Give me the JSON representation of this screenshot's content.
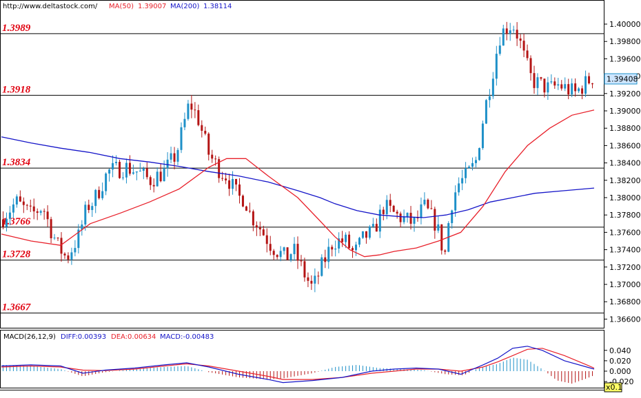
{
  "header": {
    "source": "http://www.deltastock.com/",
    "ma50_label": "MA(50)",
    "ma50_value": "1.39007",
    "ma200_label": "MA(200)",
    "ma200_value": "1.38114"
  },
  "price_axis": {
    "ticks": [
      "1.40000",
      "1.39800",
      "1.39600",
      "1.39400",
      "1.39200",
      "1.39000",
      "1.38800",
      "1.38600",
      "1.38400",
      "1.38200",
      "1.38000",
      "1.37800",
      "1.37600",
      "1.37400",
      "1.37200",
      "1.37000",
      "1.36800",
      "1.36600"
    ],
    "current_price": "1.39408",
    "current_value": 1.39408
  },
  "levels": [
    {
      "label": "1.3989",
      "value": 1.3989
    },
    {
      "label": "1.3918",
      "value": 1.3918
    },
    {
      "label": "1.3834",
      "value": 1.3834
    },
    {
      "label": "1.3766",
      "value": 1.3766
    },
    {
      "label": "1.3728",
      "value": 1.3728
    },
    {
      "label": "1.3667",
      "value": 1.3667
    }
  ],
  "macd": {
    "title": "MACD(26,12,9)",
    "diff_label": "DIFF:0.00393",
    "dea_label": "DEA:0.00634",
    "macd_label": "MACD:-0.00483",
    "ticks": [
      "0.040",
      "0.020",
      "0.000",
      "-0.020"
    ],
    "scale_badge": "x0.1"
  },
  "colors": {
    "up": "#1e90c8",
    "down": "#b41414",
    "ma50": "#e8202a",
    "ma200": "#1414c8",
    "diff": "#1414c8",
    "dea": "#e8202a",
    "level_text": "#e0000f",
    "price_tag": "#cde6ff"
  },
  "chart_data": {
    "type": "candlestick",
    "bars": 173,
    "ylim": [
      1.3655,
      1.4012
    ],
    "close_path": [
      [
        0,
        1.3775
      ],
      [
        10,
        1.3795
      ],
      [
        20,
        1.378
      ],
      [
        28,
        1.379
      ],
      [
        33,
        1.3765
      ],
      [
        38,
        1.3745
      ],
      [
        44,
        1.373
      ],
      [
        52,
        1.3755
      ],
      [
        58,
        1.379
      ],
      [
        62,
        1.3795
      ],
      [
        72,
        1.383
      ],
      [
        84,
        1.3835
      ],
      [
        92,
        1.383
      ],
      [
        100,
        1.382
      ],
      [
        110,
        1.383
      ],
      [
        118,
        1.385
      ],
      [
        127,
        1.391
      ],
      [
        133,
        1.389
      ],
      [
        140,
        1.385
      ],
      [
        148,
        1.383
      ],
      [
        152,
        1.3825
      ],
      [
        160,
        1.38
      ],
      [
        164,
        1.38
      ],
      [
        168,
        1.378
      ],
      [
        172,
        1.3772
      ],
      [
        182,
        1.3745
      ],
      [
        192,
        1.373
      ],
      [
        197,
        1.374
      ],
      [
        205,
        1.371
      ],
      [
        210,
        1.3695
      ],
      [
        216,
        1.372
      ],
      [
        224,
        1.375
      ],
      [
        232,
        1.375
      ],
      [
        238,
        1.3735
      ],
      [
        245,
        1.3755
      ],
      [
        251,
        1.376
      ],
      [
        258,
        1.379
      ],
      [
        266,
        1.378
      ],
      [
        272,
        1.3775
      ],
      [
        279,
        1.377
      ],
      [
        285,
        1.379
      ],
      [
        293,
        1.377
      ],
      [
        296,
        1.3755
      ],
      [
        299,
        1.373
      ],
      [
        303,
        1.379
      ],
      [
        308,
        1.3815
      ],
      [
        314,
        1.3825
      ],
      [
        320,
        1.384
      ],
      [
        326,
        1.39
      ],
      [
        331,
        1.394
      ],
      [
        336,
        1.3985
      ],
      [
        340,
        1.3995
      ],
      [
        345,
        1.4
      ],
      [
        349,
        1.3985
      ],
      [
        353,
        1.396
      ],
      [
        358,
        1.3935
      ],
      [
        364,
        1.393
      ],
      [
        370,
        1.3925
      ],
      [
        376,
        1.393
      ],
      [
        382,
        1.3925
      ],
      [
        387,
        1.392
      ],
      [
        393,
        1.393
      ],
      [
        400,
        1.394
      ]
    ],
    "ma50": [
      [
        0,
        1.3758
      ],
      [
        20,
        1.375
      ],
      [
        40,
        1.3745
      ],
      [
        60,
        1.377
      ],
      [
        80,
        1.3782
      ],
      [
        100,
        1.3795
      ],
      [
        120,
        1.381
      ],
      [
        140,
        1.3835
      ],
      [
        152,
        1.3845
      ],
      [
        165,
        1.3845
      ],
      [
        180,
        1.3825
      ],
      [
        200,
        1.38
      ],
      [
        214,
        1.3775
      ],
      [
        225,
        1.3755
      ],
      [
        235,
        1.374
      ],
      [
        245,
        1.3732
      ],
      [
        255,
        1.3734
      ],
      [
        265,
        1.3738
      ],
      [
        280,
        1.3742
      ],
      [
        295,
        1.375
      ],
      [
        310,
        1.376
      ],
      [
        325,
        1.379
      ],
      [
        340,
        1.383
      ],
      [
        355,
        1.386
      ],
      [
        370,
        1.388
      ],
      [
        385,
        1.3895
      ],
      [
        400,
        1.3901
      ]
    ],
    "ma200": [
      [
        0,
        1.387
      ],
      [
        20,
        1.3863
      ],
      [
        40,
        1.3857
      ],
      [
        60,
        1.3852
      ],
      [
        80,
        1.3845
      ],
      [
        100,
        1.3841
      ],
      [
        120,
        1.3836
      ],
      [
        140,
        1.383
      ],
      [
        160,
        1.3825
      ],
      [
        180,
        1.3818
      ],
      [
        200,
        1.3808
      ],
      [
        215,
        1.38
      ],
      [
        225,
        1.3793
      ],
      [
        240,
        1.3785
      ],
      [
        255,
        1.378
      ],
      [
        270,
        1.3778
      ],
      [
        285,
        1.3777
      ],
      [
        300,
        1.378
      ],
      [
        315,
        1.3786
      ],
      [
        330,
        1.3795
      ],
      [
        345,
        1.38
      ],
      [
        360,
        1.3805
      ],
      [
        380,
        1.3808
      ],
      [
        400,
        1.3811
      ]
    ],
    "macd_diff": [
      [
        0,
        0.01
      ],
      [
        20,
        0.012
      ],
      [
        40,
        0.01
      ],
      [
        55,
        -0.004
      ],
      [
        70,
        0.002
      ],
      [
        90,
        0.006
      ],
      [
        110,
        0.012
      ],
      [
        125,
        0.016
      ],
      [
        140,
        0.008
      ],
      [
        160,
        -0.006
      ],
      [
        180,
        -0.016
      ],
      [
        190,
        -0.022
      ],
      [
        210,
        -0.018
      ],
      [
        230,
        -0.012
      ],
      [
        250,
        0.0
      ],
      [
        265,
        0.004
      ],
      [
        280,
        0.006
      ],
      [
        295,
        0.004
      ],
      [
        310,
        -0.006
      ],
      [
        325,
        0.012
      ],
      [
        335,
        0.025
      ],
      [
        345,
        0.044
      ],
      [
        355,
        0.048
      ],
      [
        365,
        0.04
      ],
      [
        380,
        0.02
      ],
      [
        395,
        0.008
      ],
      [
        400,
        0.004
      ]
    ],
    "macd_dea": [
      [
        0,
        0.008
      ],
      [
        20,
        0.01
      ],
      [
        40,
        0.008
      ],
      [
        55,
        0.002
      ],
      [
        70,
        0.001
      ],
      [
        90,
        0.004
      ],
      [
        110,
        0.01
      ],
      [
        125,
        0.014
      ],
      [
        140,
        0.01
      ],
      [
        160,
        0.0
      ],
      [
        180,
        -0.01
      ],
      [
        190,
        -0.016
      ],
      [
        210,
        -0.016
      ],
      [
        230,
        -0.012
      ],
      [
        250,
        -0.004
      ],
      [
        265,
        0.0
      ],
      [
        280,
        0.004
      ],
      [
        295,
        0.004
      ],
      [
        310,
        0.0
      ],
      [
        325,
        0.008
      ],
      [
        335,
        0.018
      ],
      [
        345,
        0.03
      ],
      [
        355,
        0.042
      ],
      [
        365,
        0.044
      ],
      [
        380,
        0.03
      ],
      [
        395,
        0.012
      ],
      [
        400,
        0.006
      ]
    ],
    "macd_hist": [
      [
        0,
        0.012
      ],
      [
        20,
        0.01
      ],
      [
        40,
        0.004
      ],
      [
        55,
        -0.01
      ],
      [
        70,
        -0.002
      ],
      [
        90,
        0.004
      ],
      [
        110,
        0.008
      ],
      [
        125,
        0.01
      ],
      [
        140,
        -0.002
      ],
      [
        160,
        -0.012
      ],
      [
        180,
        -0.016
      ],
      [
        190,
        -0.014
      ],
      [
        210,
        -0.004
      ],
      [
        225,
        0.008
      ],
      [
        240,
        0.012
      ],
      [
        255,
        0.006
      ],
      [
        270,
        0.004
      ],
      [
        285,
        0.002
      ],
      [
        300,
        -0.006
      ],
      [
        312,
        -0.008
      ],
      [
        322,
        0.006
      ],
      [
        335,
        0.014
      ],
      [
        345,
        0.026
      ],
      [
        355,
        0.022
      ],
      [
        365,
        0.004
      ],
      [
        375,
        -0.018
      ],
      [
        385,
        -0.024
      ],
      [
        395,
        -0.014
      ],
      [
        400,
        -0.008
      ]
    ],
    "macd_ylim": [
      -0.032,
      0.064
    ]
  }
}
